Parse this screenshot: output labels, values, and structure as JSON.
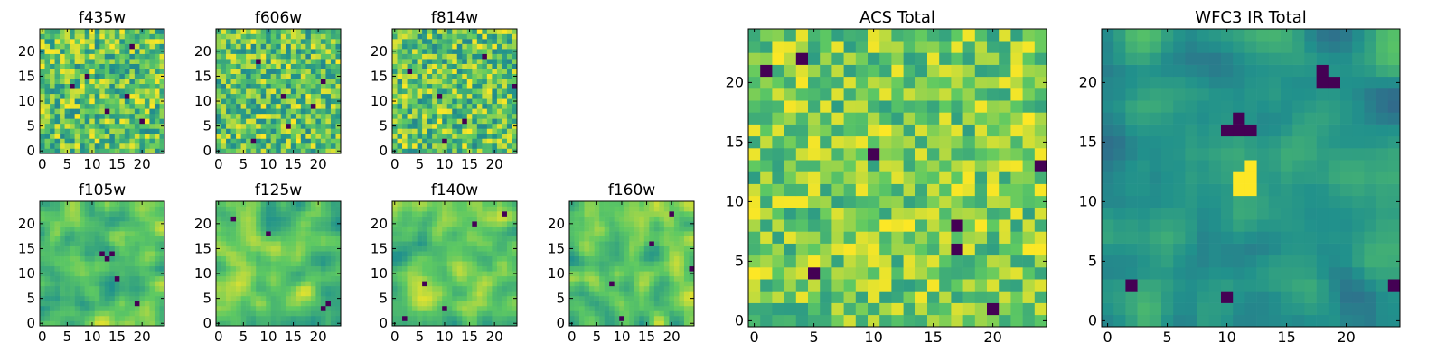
{
  "figure": {
    "name": "HST image cutouts by filter"
  },
  "colormap": {
    "name": "viridis",
    "stops": [
      "#440154",
      "#3b528b",
      "#21918c",
      "#5ec962",
      "#fde725"
    ]
  },
  "chart_data": [
    {
      "type": "heatmap",
      "title": "f435w",
      "grid": [
        25,
        25
      ],
      "xlim": [
        0,
        24
      ],
      "ylim": [
        0,
        24
      ],
      "xticks": [
        0,
        5,
        10,
        15,
        20
      ],
      "yticks": [
        0,
        5,
        10,
        15,
        20
      ],
      "seed": 11,
      "texture": "noise",
      "dark_cells": [
        [
          18,
          21
        ],
        [
          9,
          15
        ],
        [
          13,
          8
        ],
        [
          20,
          6
        ],
        [
          6,
          13
        ],
        [
          17,
          11
        ]
      ]
    },
    {
      "type": "heatmap",
      "title": "f606w",
      "grid": [
        25,
        25
      ],
      "xlim": [
        0,
        24
      ],
      "ylim": [
        0,
        24
      ],
      "xticks": [
        0,
        5,
        10,
        15,
        20
      ],
      "yticks": [
        0,
        5,
        10,
        15,
        20
      ],
      "seed": 23,
      "texture": "noise",
      "dark_cells": [
        [
          8,
          18
        ],
        [
          19,
          9
        ],
        [
          13,
          11
        ],
        [
          7,
          2
        ],
        [
          21,
          14
        ],
        [
          14,
          5
        ]
      ]
    },
    {
      "type": "heatmap",
      "title": "f814w",
      "grid": [
        25,
        25
      ],
      "xlim": [
        0,
        24
      ],
      "ylim": [
        0,
        24
      ],
      "xticks": [
        0,
        5,
        10,
        15,
        20
      ],
      "yticks": [
        0,
        5,
        10,
        15,
        20
      ],
      "seed": 37,
      "texture": "noise",
      "dark_cells": [
        [
          18,
          19
        ],
        [
          3,
          16
        ],
        [
          14,
          6
        ],
        [
          9,
          11
        ],
        [
          24,
          13
        ],
        [
          10,
          2
        ]
      ]
    },
    {
      "type": "heatmap",
      "title": "f105w",
      "grid": [
        25,
        25
      ],
      "xlim": [
        0,
        24
      ],
      "ylim": [
        0,
        24
      ],
      "xticks": [
        0,
        5,
        10,
        15,
        20
      ],
      "yticks": [
        0,
        5,
        10,
        15,
        20
      ],
      "seed": 41,
      "texture": "smooth",
      "dark_cells": [
        [
          12,
          14
        ],
        [
          13,
          13
        ],
        [
          14,
          14
        ],
        [
          15,
          9
        ],
        [
          19,
          4
        ]
      ]
    },
    {
      "type": "heatmap",
      "title": "f125w",
      "grid": [
        25,
        25
      ],
      "xlim": [
        0,
        24
      ],
      "ylim": [
        0,
        24
      ],
      "xticks": [
        0,
        5,
        10,
        15,
        20
      ],
      "yticks": [
        0,
        5,
        10,
        15,
        20
      ],
      "seed": 53,
      "texture": "smooth",
      "dark_cells": [
        [
          21,
          3
        ],
        [
          22,
          4
        ],
        [
          10,
          18
        ],
        [
          3,
          21
        ]
      ]
    },
    {
      "type": "heatmap",
      "title": "f140w",
      "grid": [
        25,
        25
      ],
      "xlim": [
        0,
        24
      ],
      "ylim": [
        0,
        24
      ],
      "xticks": [
        0,
        5,
        10,
        15,
        20
      ],
      "yticks": [
        0,
        5,
        10,
        15,
        20
      ],
      "seed": 67,
      "texture": "smooth",
      "dark_cells": [
        [
          22,
          22
        ],
        [
          6,
          8
        ],
        [
          2,
          1
        ],
        [
          16,
          20
        ],
        [
          10,
          3
        ]
      ]
    },
    {
      "type": "heatmap",
      "title": "f160w",
      "grid": [
        25,
        25
      ],
      "xlim": [
        0,
        24
      ],
      "ylim": [
        0,
        24
      ],
      "xticks": [
        0,
        5,
        10,
        15,
        20
      ],
      "yticks": [
        0,
        5,
        10,
        15,
        20
      ],
      "seed": 79,
      "texture": "smooth",
      "dark_cells": [
        [
          20,
          22
        ],
        [
          24,
          11
        ],
        [
          10,
          1
        ],
        [
          8,
          8
        ],
        [
          16,
          16
        ]
      ]
    },
    {
      "type": "heatmap",
      "title": "ACS Total",
      "grid": [
        25,
        25
      ],
      "xlim": [
        0,
        24
      ],
      "ylim": [
        0,
        24
      ],
      "xticks": [
        0,
        5,
        10,
        15,
        20
      ],
      "yticks": [
        0,
        5,
        10,
        15,
        20
      ],
      "seed": 97,
      "texture": "noise_bright",
      "dark_cells": [
        [
          1,
          21
        ],
        [
          4,
          22
        ],
        [
          10,
          14
        ],
        [
          24,
          13
        ],
        [
          17,
          8
        ],
        [
          17,
          6
        ],
        [
          20,
          1
        ],
        [
          5,
          4
        ]
      ]
    },
    {
      "type": "heatmap",
      "title": "WFC3 IR Total",
      "grid": [
        25,
        25
      ],
      "xlim": [
        0,
        24
      ],
      "ylim": [
        0,
        24
      ],
      "xticks": [
        0,
        5,
        10,
        15,
        20
      ],
      "yticks": [
        0,
        5,
        10,
        15,
        20
      ],
      "seed": 113,
      "texture": "smooth_dark",
      "dark_cells": [
        [
          10,
          16
        ],
        [
          11,
          16
        ],
        [
          12,
          16
        ],
        [
          11,
          17
        ],
        [
          18,
          20
        ],
        [
          19,
          20
        ],
        [
          18,
          21
        ],
        [
          10,
          2
        ],
        [
          2,
          3
        ],
        [
          24,
          3
        ]
      ],
      "bright_cells": [
        [
          11,
          11
        ],
        [
          12,
          11
        ],
        [
          11,
          12
        ],
        [
          12,
          12
        ],
        [
          12,
          13
        ]
      ]
    }
  ]
}
